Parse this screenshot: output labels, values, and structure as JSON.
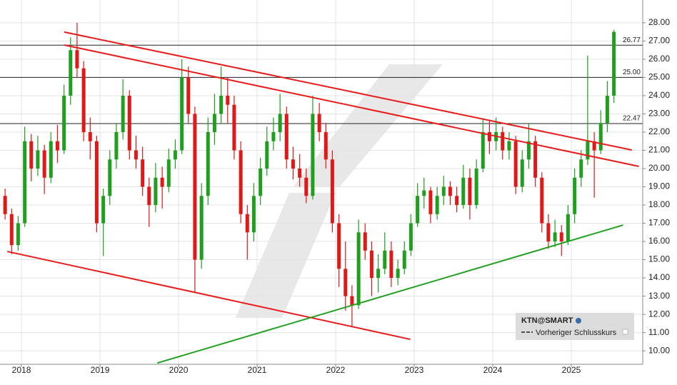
{
  "chart_data": {
    "type": "candlestick",
    "xlim": [
      2017.727,
      2025.909
    ],
    "ylim": [
      9.26,
      29.25
    ],
    "xticks": [
      2018,
      2019,
      2020,
      2021,
      2022,
      2023,
      2024,
      2025
    ],
    "yticks": [
      {
        "value": 10,
        "label": "10.00"
      },
      {
        "value": 11,
        "label": "11.00"
      },
      {
        "value": 12,
        "label": "12.00"
      },
      {
        "value": 13,
        "label": "13.00"
      },
      {
        "value": 14,
        "label": "14.00"
      },
      {
        "value": 15,
        "label": "15.00"
      },
      {
        "value": 16,
        "label": "16.00"
      },
      {
        "value": 17,
        "label": "17.00"
      },
      {
        "value": 18,
        "label": "18.00"
      },
      {
        "value": 19,
        "label": "19.00"
      },
      {
        "value": 20,
        "label": "20.00"
      },
      {
        "value": 21,
        "label": "21.00"
      },
      {
        "value": 22,
        "label": "22.00"
      },
      {
        "value": 23,
        "label": "23.00"
      },
      {
        "value": 24,
        "label": "24.00"
      },
      {
        "value": 25,
        "label": "25.00"
      },
      {
        "value": 26,
        "label": "26.00"
      },
      {
        "value": 27,
        "label": "27.00"
      },
      {
        "value": 28,
        "label": "28.00"
      }
    ],
    "grid": true,
    "up_color": "#1f9e1f",
    "down_color": "#e01818",
    "reference_lines": [
      {
        "value": 26.77,
        "label": "26.77"
      },
      {
        "value": 25,
        "label": "25.00"
      },
      22.47
    ],
    "reference_color": "#222222",
    "trendlines": [
      {
        "color": "#e81c1c",
        "x": [
          2018.545,
          2025.77
        ],
        "y": [
          27.49,
          21.02
        ]
      },
      {
        "color": "#e81c1c",
        "x": [
          2018.545,
          2025.86
        ],
        "y": [
          26.78,
          20.12
        ]
      },
      {
        "color": "#e81c1c",
        "x": [
          2017.82,
          2022.95
        ],
        "y": [
          15.45,
          10.63
        ]
      },
      {
        "color": "#22a022",
        "x": [
          2019.73,
          2025.66
        ],
        "y": [
          9.33,
          16.9
        ]
      }
    ],
    "legend": {
      "title": "KTN@SMART",
      "entry": "Vorheriger Schlusskurs"
    },
    "series": [
      {
        "name": "KTN@SMART",
        "x": [
          2017.792,
          2017.875,
          2017.958,
          2018.042,
          2018.125,
          2018.208,
          2018.292,
          2018.375,
          2018.458,
          2018.542,
          2018.625,
          2018.708,
          2018.792,
          2018.875,
          2018.958,
          2019.042,
          2019.125,
          2019.208,
          2019.292,
          2019.375,
          2019.458,
          2019.542,
          2019.625,
          2019.708,
          2019.792,
          2019.875,
          2019.958,
          2020.042,
          2020.125,
          2020.208,
          2020.292,
          2020.375,
          2020.458,
          2020.542,
          2020.625,
          2020.708,
          2020.792,
          2020.875,
          2020.958,
          2021.042,
          2021.125,
          2021.208,
          2021.292,
          2021.375,
          2021.458,
          2021.542,
          2021.625,
          2021.708,
          2021.792,
          2021.875,
          2021.958,
          2022.042,
          2022.125,
          2022.208,
          2022.292,
          2022.375,
          2022.458,
          2022.542,
          2022.625,
          2022.708,
          2022.792,
          2022.875,
          2022.958,
          2023.042,
          2023.125,
          2023.208,
          2023.292,
          2023.375,
          2023.458,
          2023.542,
          2023.625,
          2023.708,
          2023.792,
          2023.875,
          2023.958,
          2024.042,
          2024.125,
          2024.208,
          2024.292,
          2024.375,
          2024.458,
          2024.542,
          2024.625,
          2024.708,
          2024.792,
          2024.875,
          2024.958,
          2025.042,
          2025.125,
          2025.208,
          2025.292,
          2025.375,
          2025.458,
          2025.542
        ],
        "open": [
          18.5,
          17.5,
          15.8,
          17.0,
          21.5,
          20.0,
          21.0,
          19.5,
          21.5,
          21.0,
          24.0,
          26.5,
          25.5,
          22.0,
          21.5,
          17.0,
          18.5,
          20.5,
          22.0,
          24.0,
          21.0,
          20.5,
          19.0,
          18.0,
          19.5,
          19.0,
          20.5,
          21.0,
          25.0,
          23.0,
          15.0,
          18.5,
          22.0,
          23.0,
          24.0,
          23.5,
          21.0,
          17.5,
          16.5,
          18.5,
          20.0,
          21.5,
          22.0,
          23.0,
          20.5,
          20.0,
          19.5,
          18.5,
          23.0,
          22.0,
          20.5,
          17.0,
          14.5,
          13.0,
          12.5,
          16.5,
          15.5,
          14.0,
          14.5,
          15.5,
          14.0,
          14.5,
          15.5,
          17.0,
          18.5,
          18.8,
          17.5,
          18.5,
          19.0,
          18.5,
          18.0,
          19.5,
          18.0,
          20.0,
          22.0,
          21.5,
          22.0,
          21.0,
          21.5,
          19.0,
          20.5,
          21.5,
          19.5,
          17.0,
          16.0,
          16.5,
          16.0,
          17.5,
          19.5,
          20.5,
          21.5,
          21.0,
          22.5,
          24.0
        ],
        "high": [
          18.9,
          17.8,
          17.4,
          22.3,
          21.9,
          21.8,
          21.3,
          22.0,
          22.4,
          24.6,
          27.2,
          28.0,
          25.9,
          22.8,
          21.8,
          18.9,
          21.0,
          22.5,
          24.9,
          24.3,
          21.8,
          21.2,
          19.5,
          20.3,
          20.1,
          21.1,
          21.6,
          26.0,
          25.6,
          23.4,
          19.2,
          22.8,
          24.1,
          25.6,
          25.0,
          24.0,
          21.5,
          18.0,
          19.2,
          20.6,
          22.3,
          22.8,
          24.1,
          23.4,
          21.2,
          20.8,
          20.0,
          24.0,
          23.6,
          22.5,
          21.0,
          17.5,
          16.0,
          13.6,
          17.2,
          17.0,
          16.0,
          15.3,
          16.5,
          16.0,
          15.0,
          16.0,
          17.5,
          19.2,
          19.5,
          19.0,
          19.0,
          19.6,
          19.3,
          19.0,
          20.2,
          20.0,
          20.5,
          22.7,
          22.6,
          22.8,
          22.3,
          22.0,
          21.8,
          21.0,
          22.5,
          21.8,
          19.8,
          17.5,
          17.2,
          16.9,
          18.0,
          20.0,
          21.0,
          26.2,
          22.0,
          23.2,
          24.8,
          27.6
        ],
        "low": [
          17.2,
          15.3,
          15.5,
          16.8,
          19.3,
          19.6,
          18.6,
          19.2,
          20.3,
          20.8,
          23.5,
          25.0,
          21.5,
          20.5,
          16.5,
          15.2,
          18.0,
          20.0,
          21.6,
          20.5,
          20.0,
          18.5,
          16.8,
          17.6,
          17.8,
          18.7,
          20.0,
          20.8,
          22.5,
          13.2,
          14.5,
          18.0,
          21.3,
          22.5,
          22.5,
          20.5,
          17.0,
          15.0,
          16.0,
          18.0,
          19.6,
          21.0,
          21.5,
          20.0,
          19.4,
          19.0,
          18.1,
          18.3,
          21.5,
          20.0,
          16.5,
          13.5,
          12.2,
          11.3,
          12.3,
          15.0,
          13.0,
          13.2,
          14.2,
          13.5,
          13.6,
          14.2,
          15.2,
          16.8,
          17.8,
          17.0,
          17.2,
          18.0,
          18.0,
          17.6,
          17.8,
          17.2,
          17.8,
          19.8,
          20.8,
          21.0,
          20.5,
          20.5,
          18.6,
          18.7,
          20.0,
          19.0,
          16.5,
          15.6,
          15.7,
          15.2,
          15.8,
          17.0,
          19.0,
          20.2,
          18.4,
          20.8,
          22.0,
          23.6
        ],
        "close": [
          17.5,
          15.8,
          17.0,
          21.5,
          20.0,
          21.0,
          19.5,
          21.5,
          21.0,
          24.0,
          26.5,
          25.5,
          22.0,
          21.5,
          17.0,
          18.5,
          20.5,
          22.0,
          24.0,
          21.0,
          20.5,
          19.0,
          18.0,
          19.5,
          19.0,
          20.5,
          21.0,
          25.0,
          23.0,
          15.0,
          18.5,
          22.0,
          23.0,
          24.0,
          23.5,
          21.0,
          17.5,
          16.5,
          18.5,
          20.0,
          21.5,
          22.0,
          23.0,
          20.5,
          20.0,
          19.5,
          18.5,
          23.0,
          22.0,
          20.5,
          17.0,
          14.5,
          13.0,
          12.5,
          16.5,
          15.5,
          14.0,
          14.5,
          15.5,
          14.0,
          14.5,
          15.5,
          17.0,
          18.5,
          18.8,
          17.5,
          18.5,
          19.0,
          18.5,
          18.0,
          19.5,
          18.0,
          20.0,
          22.0,
          21.5,
          22.0,
          21.0,
          21.5,
          19.0,
          20.5,
          21.5,
          19.5,
          17.0,
          16.0,
          16.5,
          16.0,
          17.5,
          19.5,
          20.5,
          21.5,
          21.0,
          22.5,
          24.0,
          27.5
        ]
      }
    ]
  }
}
